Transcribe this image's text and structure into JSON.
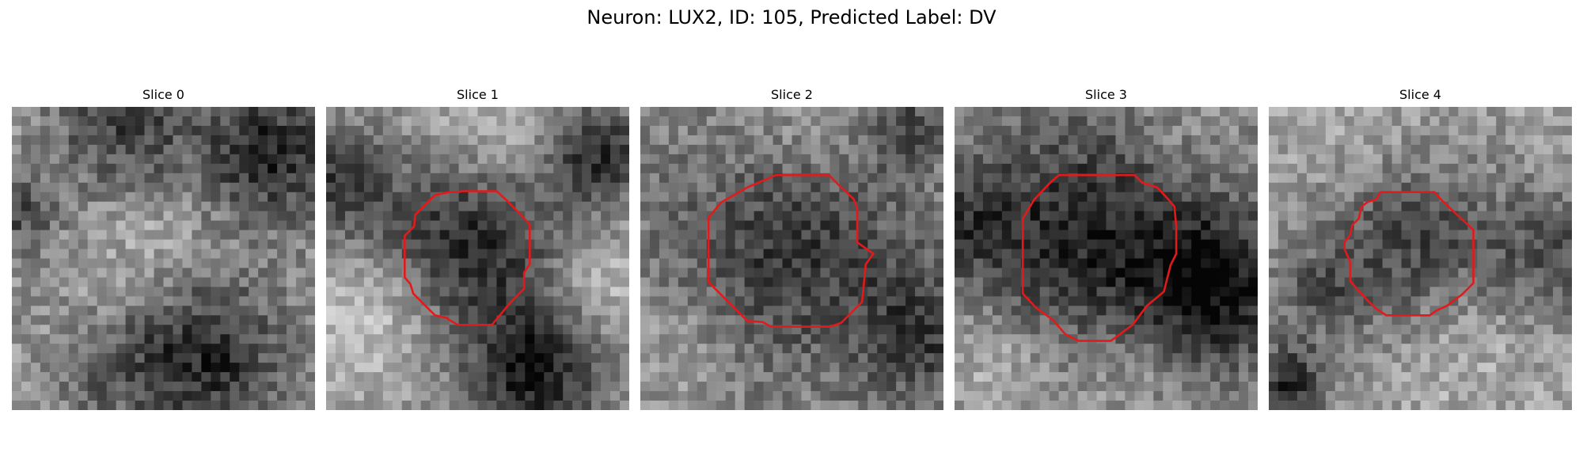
{
  "figure": {
    "title": "Neuron: LUX2, ID: 105, Predicted Label: DV",
    "contour_color": "#e31a1c"
  },
  "slices": [
    {
      "label": "Slice 0",
      "has_contour": false
    },
    {
      "label": "Slice 1",
      "has_contour": true
    },
    {
      "label": "Slice 2",
      "has_contour": true
    },
    {
      "label": "Slice 3",
      "has_contour": true
    },
    {
      "label": "Slice 4",
      "has_contour": true
    }
  ]
}
